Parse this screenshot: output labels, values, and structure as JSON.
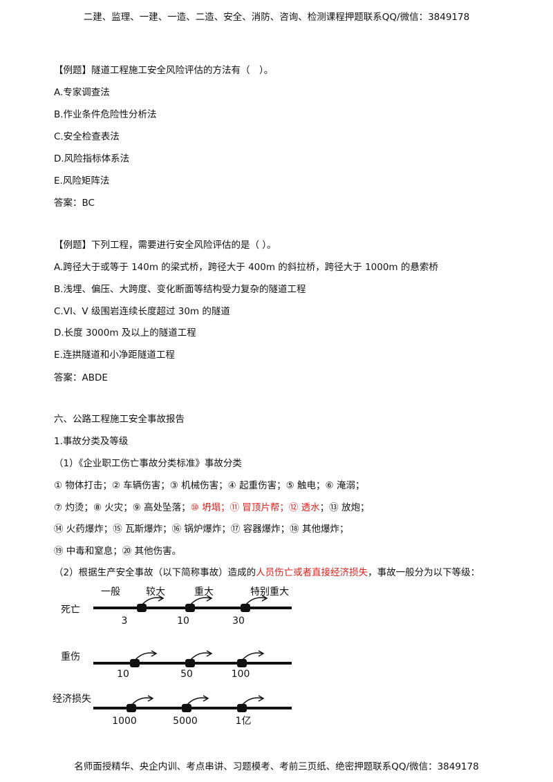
{
  "header": "二建、监理、一建、一造、二造、安全、消防、咨询、检测课程押题联系QQ/微信：3849178",
  "question1": {
    "stem": "【例题】隧道工程施工安全风险评估的方法有（　）。",
    "options": [
      "A.专家调查法",
      "B.作业条件危险性分析法",
      "C.安全检查表法",
      "D.风险指标体系法",
      "E.风险矩阵法"
    ],
    "answer": "答案：BC"
  },
  "question2": {
    "stem": "【例题】下列工程，需要进行安全风险评估的是（ ）。",
    "options": [
      "A.跨径大于或等于 140m 的梁式桥，跨径大于 400m 的斜拉桥，跨径大于 1000m 的悬索桥",
      "B.浅埋、偏压、大跨度、变化断面等结构受力复杂的隧道工程",
      "C.VI、V 级围岩连续长度超过 30m 的隧道",
      "D.长度 3000m 及以上的隧道工程",
      "E.连拱隧道和小净距隧道工程"
    ],
    "answer": "答案：ABDE"
  },
  "section": {
    "title": "六、公路工程施工安全事故报告",
    "subtitle": "1.事故分类及等级",
    "item1": "（1）《企业职工伤亡事故分类标准》事故分类",
    "lines": [
      {
        "before": "① 物体打击；② 车辆伤害；③ 机械伤害；④ 起重伤害；⑤ 触电；⑥ 淹溺；"
      },
      {
        "before": "⑦ 灼烫；⑧ 火灾；⑨ 高处坠落；",
        "red": "⑩ 坍塌；⑪ 冒顶片帮；⑫ 透水",
        "after": "；⑬ 放炮；"
      },
      {
        "before": "⑭ 火药爆炸；⑮ 瓦斯爆炸；⑯ 锅炉爆炸；⑰ 容器爆炸；⑱ 其他爆炸；"
      },
      {
        "before": "⑲ 中毒和窒息；⑳ 其他伤害。"
      },
      {
        "before": "（2）根据生产安全事故（以下简称事故）造成的",
        "red": "人员伤亡或者直接经济损失",
        "after": "，事故一般分为以下等级："
      }
    ]
  },
  "diagram": {
    "levels": [
      "一般",
      "较大",
      "重大",
      "特别重大"
    ],
    "rows": [
      {
        "label": "死亡",
        "thresholds": [
          "3",
          "10",
          "30"
        ]
      },
      {
        "label": "重伤",
        "thresholds": [
          "10",
          "50",
          "100"
        ]
      },
      {
        "label": "经济损失",
        "thresholds": [
          "1000",
          "5000",
          "1亿"
        ]
      }
    ]
  },
  "footer": "名师面授精华、央企内训、考点串讲、习题模考、考前三页纸、绝密押题联系QQ/微信：3849178"
}
